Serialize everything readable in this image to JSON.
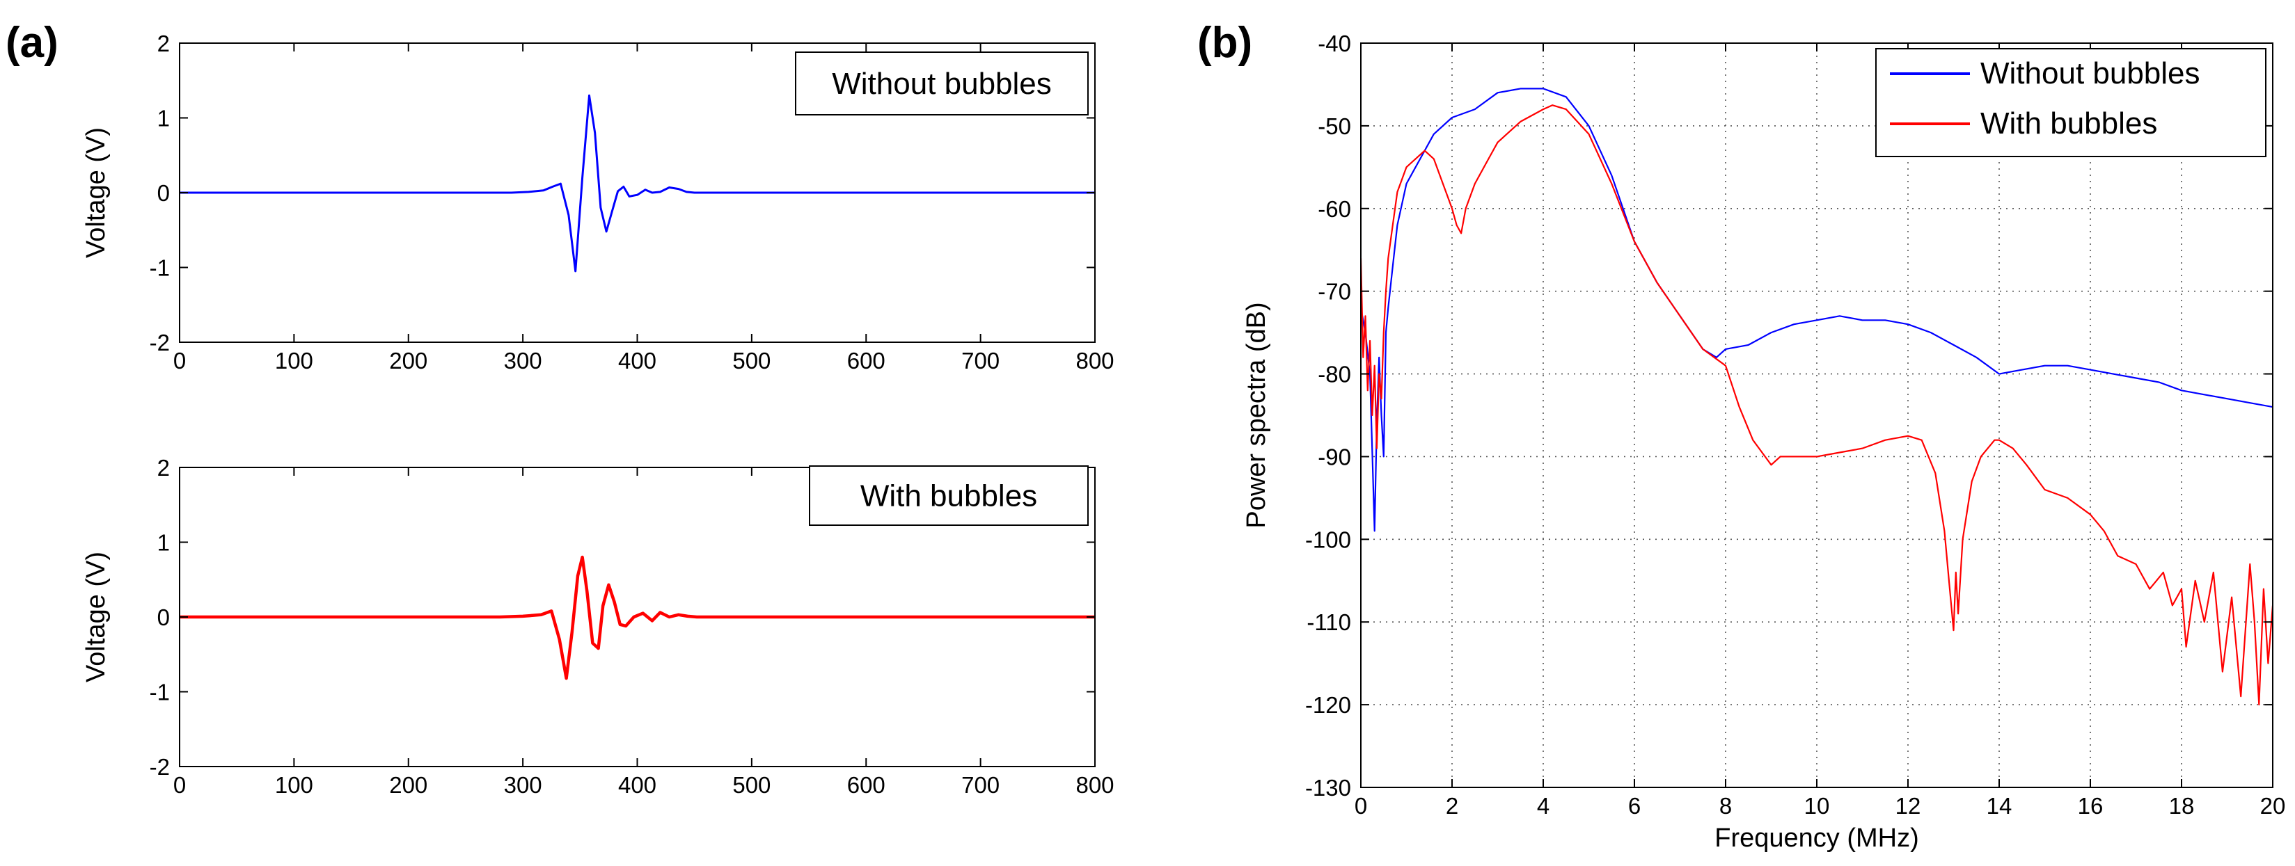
{
  "chart_data": [
    {
      "id": "a-top",
      "panel_label": "(a)",
      "type": "line",
      "title": "",
      "xlabel": "",
      "ylabel": "Voltage (V)",
      "xlim": [
        0,
        800
      ],
      "ylim": [
        -2,
        2
      ],
      "xticks": [
        0,
        100,
        200,
        300,
        400,
        500,
        600,
        700,
        800
      ],
      "yticks": [
        -2,
        -1,
        0,
        1,
        2
      ],
      "grid": false,
      "legend_position": "top-right",
      "series": [
        {
          "name": "Without bubbles",
          "color": "#0000ff",
          "x": [
            0,
            290,
            305,
            318,
            326,
            333,
            340,
            346,
            352,
            358,
            363,
            368,
            373,
            378,
            383,
            388,
            393,
            400,
            407,
            413,
            420,
            428,
            436,
            443,
            450,
            800
          ],
          "y": [
            0,
            0,
            0.01,
            0.03,
            0.08,
            0.12,
            -0.3,
            -1.05,
            0.2,
            1.3,
            0.8,
            -0.2,
            -0.52,
            -0.25,
            0.02,
            0.08,
            -0.05,
            -0.03,
            0.04,
            0.0,
            0.01,
            0.07,
            0.05,
            0.01,
            0.0,
            0.0
          ]
        }
      ]
    },
    {
      "id": "a-bottom",
      "panel_label": "",
      "type": "line",
      "title": "",
      "xlabel": "",
      "ylabel": "Voltage (V)",
      "xlim": [
        0,
        800
      ],
      "ylim": [
        -2,
        2
      ],
      "xticks": [
        0,
        100,
        200,
        300,
        400,
        500,
        600,
        700,
        800
      ],
      "yticks": [
        -2,
        -1,
        0,
        1,
        2
      ],
      "grid": false,
      "legend_position": "top-right",
      "series": [
        {
          "name": "With bubbles",
          "color": "#ff0000",
          "x": [
            0,
            280,
            300,
            316,
            325,
            332,
            338,
            343,
            348,
            352,
            356,
            361,
            366,
            370,
            375,
            380,
            385,
            390,
            397,
            405,
            413,
            420,
            428,
            436,
            444,
            452,
            800
          ],
          "y": [
            0,
            0,
            0.01,
            0.03,
            0.08,
            -0.3,
            -0.82,
            -0.2,
            0.55,
            0.8,
            0.35,
            -0.35,
            -0.42,
            0.15,
            0.43,
            0.2,
            -0.1,
            -0.12,
            0.0,
            0.05,
            -0.05,
            0.06,
            0.0,
            0.03,
            0.01,
            0.0,
            0.0
          ]
        }
      ]
    },
    {
      "id": "b",
      "panel_label": "(b)",
      "type": "line",
      "title": "",
      "xlabel": "Frequency  (MHz)",
      "ylabel": "Power spectra  (dB)",
      "xlim": [
        0,
        20
      ],
      "ylim": [
        -130,
        -40
      ],
      "xticks": [
        0,
        2,
        4,
        6,
        8,
        10,
        12,
        14,
        16,
        18,
        20
      ],
      "yticks": [
        -40,
        -50,
        -60,
        -70,
        -80,
        -90,
        -100,
        -110,
        -120,
        -130
      ],
      "grid": true,
      "legend_position": "top-right",
      "series": [
        {
          "name": "Without bubbles",
          "color": "#0000ff",
          "x": [
            0.0,
            0.1,
            0.2,
            0.3,
            0.35,
            0.4,
            0.45,
            0.5,
            0.55,
            0.6,
            0.7,
            0.8,
            1.0,
            1.3,
            1.6,
            2.0,
            2.5,
            3.0,
            3.5,
            4.0,
            4.5,
            5.0,
            5.5,
            6.0,
            6.5,
            7.0,
            7.5,
            7.8,
            8.0,
            8.5,
            9.0,
            9.5,
            10.0,
            10.5,
            11.0,
            11.5,
            12.0,
            12.5,
            13.0,
            13.5,
            14.0,
            14.5,
            15.0,
            15.5,
            16.0,
            16.5,
            17.0,
            17.5,
            18.0,
            18.5,
            19.0,
            19.5,
            20.0
          ],
          "y": [
            -72,
            -75,
            -80,
            -99,
            -86,
            -78,
            -85,
            -90,
            -75,
            -72,
            -67,
            -62,
            -57,
            -54,
            -51,
            -49,
            -48,
            -46,
            -45.5,
            -45.5,
            -46.5,
            -50,
            -56,
            -64,
            -69,
            -73,
            -77,
            -78,
            -77,
            -76.5,
            -75,
            -74,
            -73.5,
            -73,
            -73.5,
            -73.5,
            -74,
            -75,
            -76.5,
            -78,
            -80,
            -79.5,
            -79,
            -79,
            -79.5,
            -80,
            -80.5,
            -81,
            -82,
            -82.5,
            -83,
            -83.5,
            -84
          ]
        },
        {
          "name": "With bubbles",
          "color": "#ff0000",
          "x": [
            0.0,
            0.05,
            0.1,
            0.15,
            0.2,
            0.25,
            0.3,
            0.35,
            0.4,
            0.45,
            0.5,
            0.55,
            0.6,
            0.7,
            0.8,
            1.0,
            1.2,
            1.4,
            1.6,
            1.8,
            2.0,
            2.1,
            2.2,
            2.3,
            2.5,
            2.8,
            3.0,
            3.5,
            4.0,
            4.2,
            4.5,
            5.0,
            5.5,
            6.0,
            6.5,
            7.0,
            7.5,
            8.0,
            8.3,
            8.6,
            9.0,
            9.2,
            9.5,
            10.0,
            10.5,
            11.0,
            11.5,
            12.0,
            12.3,
            12.6,
            12.8,
            12.9,
            13.0,
            13.05,
            13.1,
            13.2,
            13.4,
            13.6,
            13.9,
            14.0,
            14.3,
            14.6,
            15.0,
            15.5,
            16.0,
            16.3,
            16.6,
            17.0,
            17.3,
            17.6,
            17.8,
            18.0,
            18.1,
            18.3,
            18.5,
            18.7,
            18.9,
            19.1,
            19.3,
            19.5,
            19.6,
            19.7,
            19.8,
            19.9,
            20.0
          ],
          "y": [
            -66,
            -78,
            -73,
            -82,
            -76,
            -85,
            -79,
            -89,
            -80,
            -83,
            -75,
            -70,
            -66,
            -62,
            -58,
            -55,
            -54,
            -53,
            -54,
            -57,
            -60,
            -62,
            -63,
            -60,
            -57,
            -54,
            -52,
            -49.5,
            -48,
            -47.5,
            -48,
            -51,
            -57,
            -64,
            -69,
            -73,
            -77,
            -79,
            -84,
            -88,
            -91,
            -90,
            -90,
            -90,
            -89.5,
            -89,
            -88,
            -87.5,
            -88,
            -92,
            -99,
            -105,
            -111,
            -104,
            -109,
            -100,
            -93,
            -90,
            -88,
            -88,
            -89,
            -91,
            -94,
            -95,
            -97,
            -99,
            -102,
            -103,
            -106,
            -104,
            -108,
            -106,
            -113,
            -105,
            -110,
            -104,
            -116,
            -107,
            -119,
            -103,
            -110,
            -120,
            -106,
            -115,
            -108
          ]
        }
      ]
    }
  ]
}
